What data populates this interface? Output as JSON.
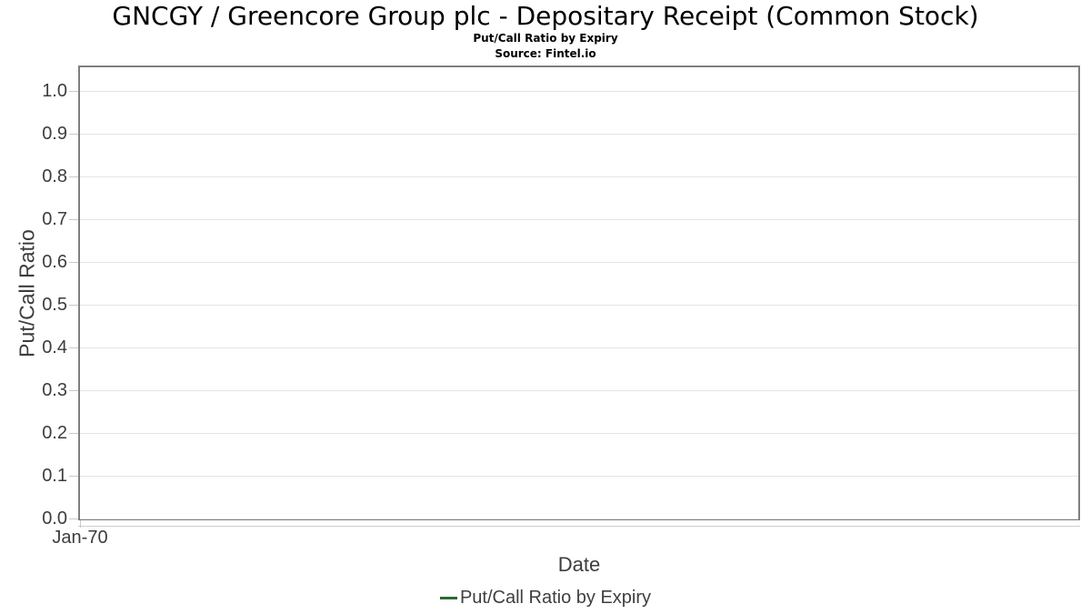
{
  "chart_data": {
    "type": "line",
    "title": "GNCGY / Greencore Group plc - Depositary Receipt (Common Stock)",
    "subtitle": "Put/Call Ratio by Expiry",
    "source": "Source: Fintel.io",
    "xlabel": "Date",
    "ylabel": "Put/Call Ratio",
    "ylim": [
      0,
      1.055
    ],
    "yticks": [
      0,
      0.1,
      0.2,
      0.3,
      0.4,
      0.5,
      0.6,
      0.7,
      0.8,
      0.9,
      1.0
    ],
    "ytick_labels": [
      "0.0",
      "0.1",
      "0.2",
      "0.3",
      "0.4",
      "0.5",
      "0.6",
      "0.7",
      "0.8",
      "0.9",
      "1.0"
    ],
    "xtick_labels": [
      "Jan-70"
    ],
    "grid": true,
    "legend_position": "bottom",
    "series": [
      {
        "name": "Put/Call Ratio by Expiry",
        "color": "#2d6a32",
        "x": [],
        "values": []
      }
    ]
  }
}
